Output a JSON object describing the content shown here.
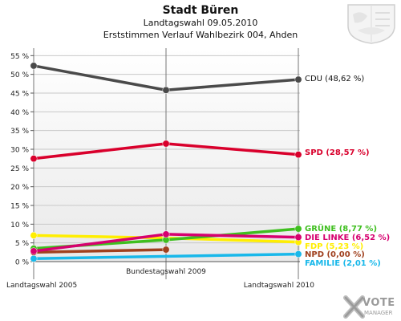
{
  "header": {
    "title": "Stadt Büren",
    "subtitle1": "Landtagswahl 09.05.2010",
    "subtitle2": "Erststimmen Verlauf Wahlbezirk 004, Ahden"
  },
  "brand": {
    "logo_text_1": "VOTE",
    "logo_text_2": "MANAGER"
  },
  "chart_data": {
    "type": "line",
    "categories": [
      "Landtagswahl 2005",
      "Bundestagswahl 2009",
      "Landtagswahl 2010"
    ],
    "ylim": [
      0,
      57
    ],
    "yticks": [
      0,
      5,
      10,
      15,
      20,
      25,
      30,
      35,
      40,
      45,
      50,
      55
    ],
    "ytick_suffix": " %",
    "grid": true,
    "series": [
      {
        "name": "CDU",
        "end_label": "CDU (48,62 %)",
        "color": "#4a4a4a",
        "values": [
          52.3,
          45.8,
          48.62
        ]
      },
      {
        "name": "SPD",
        "end_label": "SPD (28,57 %)",
        "color": "#d9002c",
        "values": [
          27.5,
          31.5,
          28.57
        ]
      },
      {
        "name": "GRÜNE",
        "end_label": "GRÜNE (8,77 %)",
        "color": "#3fbf1f",
        "values": [
          3.5,
          5.8,
          8.77
        ]
      },
      {
        "name": "DIE LINKE",
        "end_label": "DIE LINKE (6,52 %)",
        "color": "#d6006f",
        "values": [
          2.8,
          7.3,
          6.52
        ]
      },
      {
        "name": "FDP",
        "end_label": "FDP (5,23 %)",
        "color": "#ffee00",
        "values": [
          7.0,
          6.3,
          5.23
        ]
      },
      {
        "name": "NPD",
        "end_label": "NPD (0,00 %)",
        "color": "#a0401e",
        "values": [
          2.5,
          3.2,
          null
        ]
      },
      {
        "name": "FAMILIE",
        "end_label": "FAMILIE (2,01 %)",
        "color": "#19b8ea",
        "values": [
          0.8,
          null,
          2.01
        ]
      }
    ]
  }
}
